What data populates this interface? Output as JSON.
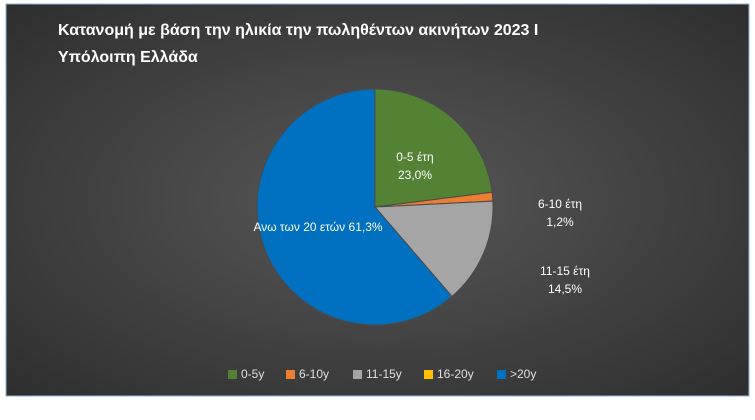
{
  "chart_data": {
    "type": "pie",
    "title": "Κατανομή με βάση την ηλικία την πωληθέντων ακινήτων 2023 Ι Υπόλοιπη Ελλάδα",
    "categories": [
      "0-5y",
      "6-10y",
      "11-15y",
      "16-20y",
      ">20y"
    ],
    "values": [
      23.0,
      1.2,
      14.5,
      0,
      61.3
    ],
    "value_labels": [
      "23,0%",
      "1,2%",
      "14,5%",
      null,
      "61,3%"
    ],
    "label_names": [
      "0-5 έτη",
      "6-10 έτη",
      "11-15 έτη",
      null,
      "Ανω των 20 ετών"
    ],
    "colors": [
      "#548235",
      "#ed7d31",
      "#a5a5a5",
      "#ffc000",
      "#0070c0"
    ],
    "legend": "bottom"
  }
}
